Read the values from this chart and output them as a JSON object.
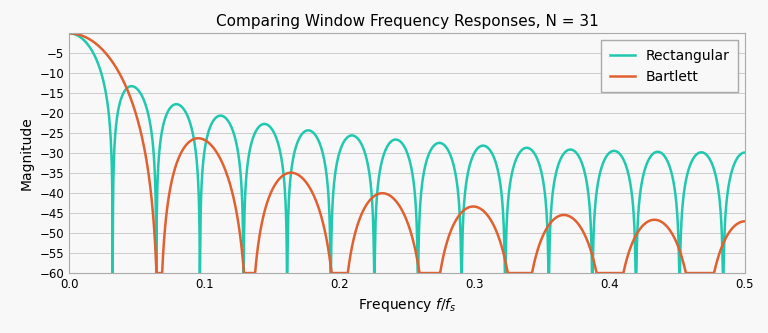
{
  "title": "Comparing Window Frequency Responses, N = 31",
  "xlabel": "Frequency $f/f_s$",
  "ylabel": "Magnitude",
  "N": 31,
  "ylim": [
    -60,
    0
  ],
  "xlim": [
    0.0,
    0.5
  ],
  "yticks": [
    -60,
    -55,
    -50,
    -45,
    -40,
    -35,
    -30,
    -25,
    -20,
    -15,
    -10,
    -5
  ],
  "xticks": [
    0.0,
    0.1,
    0.2,
    0.3,
    0.4,
    0.5
  ],
  "bartlett_color": "#E06030",
  "rectangular_color": "#20C8B0",
  "background_color": "#f8f8f8",
  "grid_color": "#cccccc",
  "title_fontsize": 11,
  "label_fontsize": 10,
  "legend_fontsize": 10,
  "line_width": 1.8,
  "figsize": [
    7.68,
    3.33
  ],
  "dpi": 100
}
